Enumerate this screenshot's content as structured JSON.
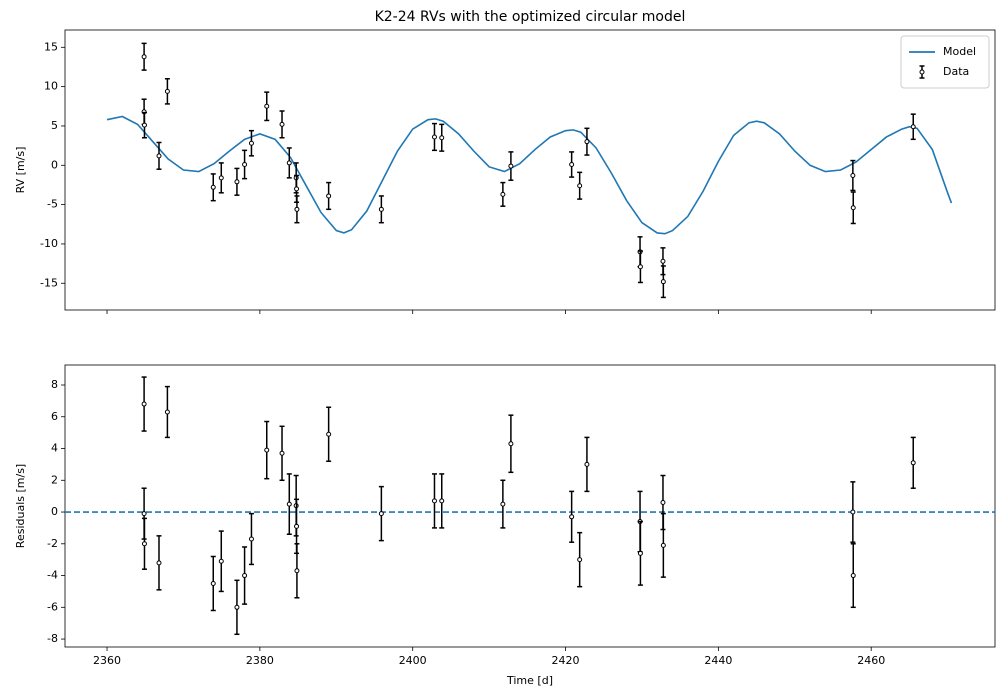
{
  "chart_data": [
    {
      "type": "line",
      "title": "K2-24 RVs with the optimized circular model",
      "ylabel": "RV [m/s]",
      "xlim": [
        2354.5,
        2476.2
      ],
      "ylim": [
        -18.4,
        17.2
      ],
      "xticks": [
        2360,
        2380,
        2400,
        2420,
        2440,
        2460
      ],
      "yticks": [
        -15,
        -10,
        -5,
        0,
        5,
        10,
        15
      ],
      "legend": "upper right",
      "series": [
        {
          "name": "Model",
          "type": "line",
          "color": "#1f77b4",
          "x": [
            2360,
            2362,
            2364,
            2366,
            2368,
            2370,
            2372,
            2374,
            2376,
            2378,
            2380,
            2382,
            2384,
            2386,
            2388,
            2390,
            2391,
            2392,
            2394,
            2396,
            2398,
            2400,
            2402,
            2403,
            2404,
            2406,
            2408,
            2410,
            2412,
            2414,
            2416,
            2418,
            2420,
            2421,
            2422,
            2424,
            2426,
            2428,
            2430,
            2432,
            2433,
            2434,
            2436,
            2438,
            2440,
            2442,
            2444,
            2445,
            2446,
            2448,
            2450,
            2452,
            2454,
            2456,
            2458,
            2460,
            2462,
            2464,
            2465,
            2466,
            2468,
            2470,
            2470.5
          ],
          "values": [
            5.8,
            6.2,
            5.2,
            3.0,
            0.8,
            -0.6,
            -0.8,
            0.2,
            1.8,
            3.3,
            4.0,
            3.3,
            1.0,
            -2.5,
            -6.0,
            -8.3,
            -8.6,
            -8.2,
            -5.8,
            -2.0,
            1.8,
            4.6,
            5.8,
            5.9,
            5.6,
            4.0,
            1.8,
            -0.2,
            -0.8,
            0.2,
            2.0,
            3.6,
            4.4,
            4.5,
            4.2,
            2.2,
            -1.0,
            -4.5,
            -7.3,
            -8.6,
            -8.7,
            -8.3,
            -6.5,
            -3.3,
            0.5,
            3.8,
            5.4,
            5.6,
            5.4,
            4.0,
            1.8,
            0.0,
            -0.8,
            -0.6,
            0.4,
            2.0,
            3.6,
            4.6,
            4.9,
            4.7,
            2.0,
            -3.5,
            -4.8
          ]
        },
        {
          "name": "Data",
          "type": "errorbar",
          "color": "#000000",
          "x": [
            2364.85,
            2364.85,
            2364.9,
            2366.8,
            2367.9,
            2373.9,
            2374.95,
            2377.0,
            2378.0,
            2378.9,
            2380.9,
            2382.9,
            2383.85,
            2384.75,
            2384.8,
            2384.85,
            2389.0,
            2395.9,
            2402.85,
            2403.8,
            2411.8,
            2412.85,
            2420.8,
            2421.85,
            2422.8,
            2429.75,
            2429.8,
            2432.75,
            2432.8,
            2457.6,
            2457.65,
            2465.5
          ],
          "values": [
            13.8,
            6.8,
            5.1,
            1.2,
            9.4,
            -2.8,
            -1.6,
            -2.1,
            0.1,
            2.8,
            7.5,
            5.2,
            0.3,
            -1.6,
            -3.0,
            -5.6,
            -3.9,
            -5.6,
            3.6,
            3.5,
            -3.7,
            -0.1,
            0.1,
            -2.6,
            3.0,
            -11.0,
            -12.9,
            -12.2,
            -14.8,
            -1.3,
            -5.4,
            4.9
          ],
          "errors": [
            1.7,
            1.6,
            1.6,
            1.7,
            1.6,
            1.7,
            1.9,
            1.7,
            1.8,
            1.6,
            1.8,
            1.7,
            1.9,
            1.9,
            1.7,
            1.7,
            1.7,
            1.7,
            1.7,
            1.7,
            1.5,
            1.8,
            1.6,
            1.7,
            1.7,
            1.9,
            2.0,
            1.7,
            2.0,
            1.9,
            2.0,
            1.6
          ]
        }
      ]
    },
    {
      "type": "errorbar",
      "xlabel": "Time [d]",
      "ylabel": "Residuals [m/s]",
      "xlim": [
        2354.5,
        2476.2
      ],
      "ylim": [
        -8.5,
        9.26
      ],
      "xticks": [
        2360,
        2380,
        2400,
        2420,
        2440,
        2460
      ],
      "yticks": [
        -8,
        -6,
        -4,
        -2,
        0,
        2,
        4,
        6,
        8
      ],
      "hline": 0,
      "hline_color": "#1f77b4",
      "series": [
        {
          "type": "errorbar",
          "color": "#000000",
          "x": [
            2364.85,
            2364.85,
            2364.9,
            2366.8,
            2367.9,
            2373.9,
            2374.95,
            2377.0,
            2378.0,
            2378.9,
            2380.9,
            2382.9,
            2383.85,
            2384.75,
            2384.8,
            2384.85,
            2389.0,
            2395.9,
            2402.85,
            2403.8,
            2411.8,
            2412.85,
            2420.8,
            2421.85,
            2422.8,
            2429.75,
            2429.8,
            2432.75,
            2432.8,
            2457.6,
            2457.65,
            2465.5
          ],
          "values": [
            6.8,
            -0.1,
            -2.0,
            -3.2,
            6.3,
            -4.5,
            -3.1,
            -6.0,
            -4.0,
            -1.7,
            3.9,
            3.7,
            0.5,
            0.4,
            -0.9,
            -3.7,
            4.9,
            -0.1,
            0.7,
            0.7,
            0.5,
            4.3,
            -0.3,
            -3.0,
            3.0,
            -0.6,
            -2.6,
            0.6,
            -2.1,
            0.0,
            -4.0,
            3.1
          ],
          "errors": [
            1.7,
            1.6,
            1.6,
            1.7,
            1.6,
            1.7,
            1.9,
            1.7,
            1.8,
            1.6,
            1.8,
            1.7,
            1.9,
            1.9,
            1.7,
            1.7,
            1.7,
            1.7,
            1.7,
            1.7,
            1.5,
            1.8,
            1.6,
            1.7,
            1.7,
            1.9,
            2.0,
            1.7,
            2.0,
            1.9,
            2.0,
            1.6
          ]
        }
      ]
    }
  ]
}
